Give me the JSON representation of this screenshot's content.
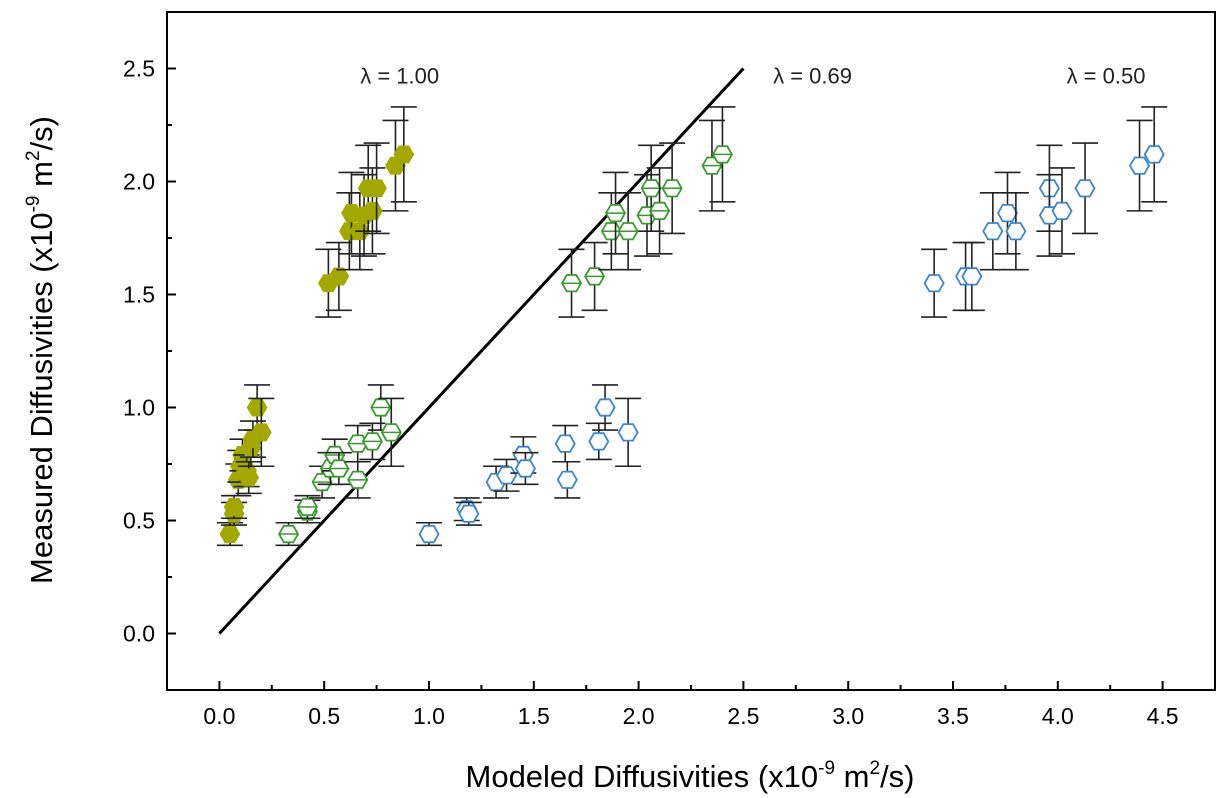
{
  "chart_data": {
    "type": "scatter",
    "title": "",
    "xlabel": {
      "pre": "Modeled Diffusivities (x10",
      "exp1": "-9",
      "mid": " m",
      "exp2": "2",
      "post": "/s)"
    },
    "ylabel": {
      "pre": "Measured Diffusivities (x10",
      "exp1": "-9",
      "mid": " m",
      "exp2": "2",
      "post": "/s)"
    },
    "xlim": [
      -0.25,
      4.75
    ],
    "ylim": [
      -0.25,
      2.75
    ],
    "xticks": [
      "0.0",
      "0.5",
      "1.0",
      "1.5",
      "2.0",
      "2.5",
      "3.0",
      "3.5",
      "4.0",
      "4.5"
    ],
    "yticks": [
      "0.0",
      "0.5",
      "1.0",
      "1.5",
      "2.0",
      "2.5"
    ],
    "grid": false,
    "line": {
      "x": [
        0,
        2.5
      ],
      "y": [
        0,
        2.5
      ],
      "color": "#000000"
    },
    "annotations": [
      {
        "text": "λ = 1.00",
        "x": 0.86,
        "y": 2.5
      },
      {
        "text": "λ = 0.69",
        "x": 2.83,
        "y": 2.5
      },
      {
        "text": "λ = 0.50",
        "x": 4.23,
        "y": 2.5
      }
    ],
    "series": [
      {
        "marker": "filled-hexagon",
        "color": "#a3a800",
        "points": [
          {
            "x": 0.05,
            "y": 0.44,
            "err": 0.05
          },
          {
            "x": 0.07,
            "y": 0.53,
            "err": 0.05
          },
          {
            "x": 0.07,
            "y": 0.56,
            "err": 0.05
          },
          {
            "x": 0.09,
            "y": 0.68,
            "err": 0.07
          },
          {
            "x": 0.1,
            "y": 0.74,
            "err": 0.07
          },
          {
            "x": 0.11,
            "y": 0.79,
            "err": 0.07
          },
          {
            "x": 0.13,
            "y": 0.72,
            "err": 0.07
          },
          {
            "x": 0.14,
            "y": 0.69,
            "err": 0.07
          },
          {
            "x": 0.15,
            "y": 0.82,
            "err": 0.08
          },
          {
            "x": 0.16,
            "y": 0.86,
            "err": 0.08
          },
          {
            "x": 0.18,
            "y": 1.0,
            "err": 0.1
          },
          {
            "x": 0.2,
            "y": 0.89,
            "err": 0.15
          },
          {
            "x": 0.52,
            "y": 1.55,
            "err": 0.15
          },
          {
            "x": 0.57,
            "y": 1.58,
            "err": 0.15
          },
          {
            "x": 0.62,
            "y": 1.78,
            "err": 0.17
          },
          {
            "x": 0.63,
            "y": 1.86,
            "err": 0.18
          },
          {
            "x": 0.67,
            "y": 1.78,
            "err": 0.17
          },
          {
            "x": 0.69,
            "y": 1.85,
            "err": 0.18
          },
          {
            "x": 0.71,
            "y": 1.97,
            "err": 0.19
          },
          {
            "x": 0.73,
            "y": 1.87,
            "err": 0.19
          },
          {
            "x": 0.75,
            "y": 1.97,
            "err": 0.2
          },
          {
            "x": 0.84,
            "y": 2.07,
            "err": 0.2
          },
          {
            "x": 0.88,
            "y": 2.12,
            "err": 0.21
          }
        ]
      },
      {
        "marker": "hexagon-with-bar",
        "color": "#3a9a2e",
        "points": [
          {
            "x": 0.33,
            "y": 0.44,
            "err": 0.05
          },
          {
            "x": 0.42,
            "y": 0.54,
            "err": 0.05
          },
          {
            "x": 0.42,
            "y": 0.56,
            "err": 0.05
          },
          {
            "x": 0.49,
            "y": 0.67,
            "err": 0.07
          },
          {
            "x": 0.53,
            "y": 0.73,
            "err": 0.07
          },
          {
            "x": 0.55,
            "y": 0.79,
            "err": 0.07
          },
          {
            "x": 0.57,
            "y": 0.73,
            "err": 0.07
          },
          {
            "x": 0.66,
            "y": 0.84,
            "err": 0.08
          },
          {
            "x": 0.66,
            "y": 0.68,
            "err": 0.08
          },
          {
            "x": 0.73,
            "y": 0.85,
            "err": 0.08
          },
          {
            "x": 0.77,
            "y": 1.0,
            "err": 0.1
          },
          {
            "x": 0.82,
            "y": 0.89,
            "err": 0.15
          },
          {
            "x": 1.68,
            "y": 1.55,
            "err": 0.15
          },
          {
            "x": 1.79,
            "y": 1.58,
            "err": 0.15
          },
          {
            "x": 1.87,
            "y": 1.78,
            "err": 0.17
          },
          {
            "x": 1.89,
            "y": 1.86,
            "err": 0.18
          },
          {
            "x": 1.95,
            "y": 1.78,
            "err": 0.17
          },
          {
            "x": 2.04,
            "y": 1.85,
            "err": 0.18
          },
          {
            "x": 2.06,
            "y": 1.97,
            "err": 0.19
          },
          {
            "x": 2.1,
            "y": 1.87,
            "err": 0.19
          },
          {
            "x": 2.16,
            "y": 1.97,
            "err": 0.2
          },
          {
            "x": 2.35,
            "y": 2.07,
            "err": 0.2
          },
          {
            "x": 2.4,
            "y": 2.12,
            "err": 0.21
          }
        ]
      },
      {
        "marker": "open-hexagon",
        "color": "#3a86c8",
        "points": [
          {
            "x": 1.0,
            "y": 0.44,
            "err": 0.05
          },
          {
            "x": 1.18,
            "y": 0.55,
            "err": 0.05
          },
          {
            "x": 1.19,
            "y": 0.53,
            "err": 0.05
          },
          {
            "x": 1.32,
            "y": 0.67,
            "err": 0.07
          },
          {
            "x": 1.37,
            "y": 0.7,
            "err": 0.07
          },
          {
            "x": 1.45,
            "y": 0.79,
            "err": 0.08
          },
          {
            "x": 1.46,
            "y": 0.73,
            "err": 0.07
          },
          {
            "x": 1.65,
            "y": 0.84,
            "err": 0.08
          },
          {
            "x": 1.66,
            "y": 0.68,
            "err": 0.08
          },
          {
            "x": 1.81,
            "y": 0.85,
            "err": 0.08
          },
          {
            "x": 1.84,
            "y": 1.0,
            "err": 0.1
          },
          {
            "x": 1.95,
            "y": 0.89,
            "err": 0.15
          },
          {
            "x": 3.41,
            "y": 1.55,
            "err": 0.15
          },
          {
            "x": 3.56,
            "y": 1.58,
            "err": 0.15
          },
          {
            "x": 3.59,
            "y": 1.58,
            "err": 0.15
          },
          {
            "x": 3.69,
            "y": 1.78,
            "err": 0.17
          },
          {
            "x": 3.76,
            "y": 1.86,
            "err": 0.18
          },
          {
            "x": 3.8,
            "y": 1.78,
            "err": 0.17
          },
          {
            "x": 3.96,
            "y": 1.97,
            "err": 0.19
          },
          {
            "x": 3.96,
            "y": 1.85,
            "err": 0.18
          },
          {
            "x": 4.02,
            "y": 1.87,
            "err": 0.19
          },
          {
            "x": 4.13,
            "y": 1.97,
            "err": 0.2
          },
          {
            "x": 4.39,
            "y": 2.07,
            "err": 0.2
          },
          {
            "x": 4.46,
            "y": 2.12,
            "err": 0.21
          }
        ]
      }
    ]
  }
}
